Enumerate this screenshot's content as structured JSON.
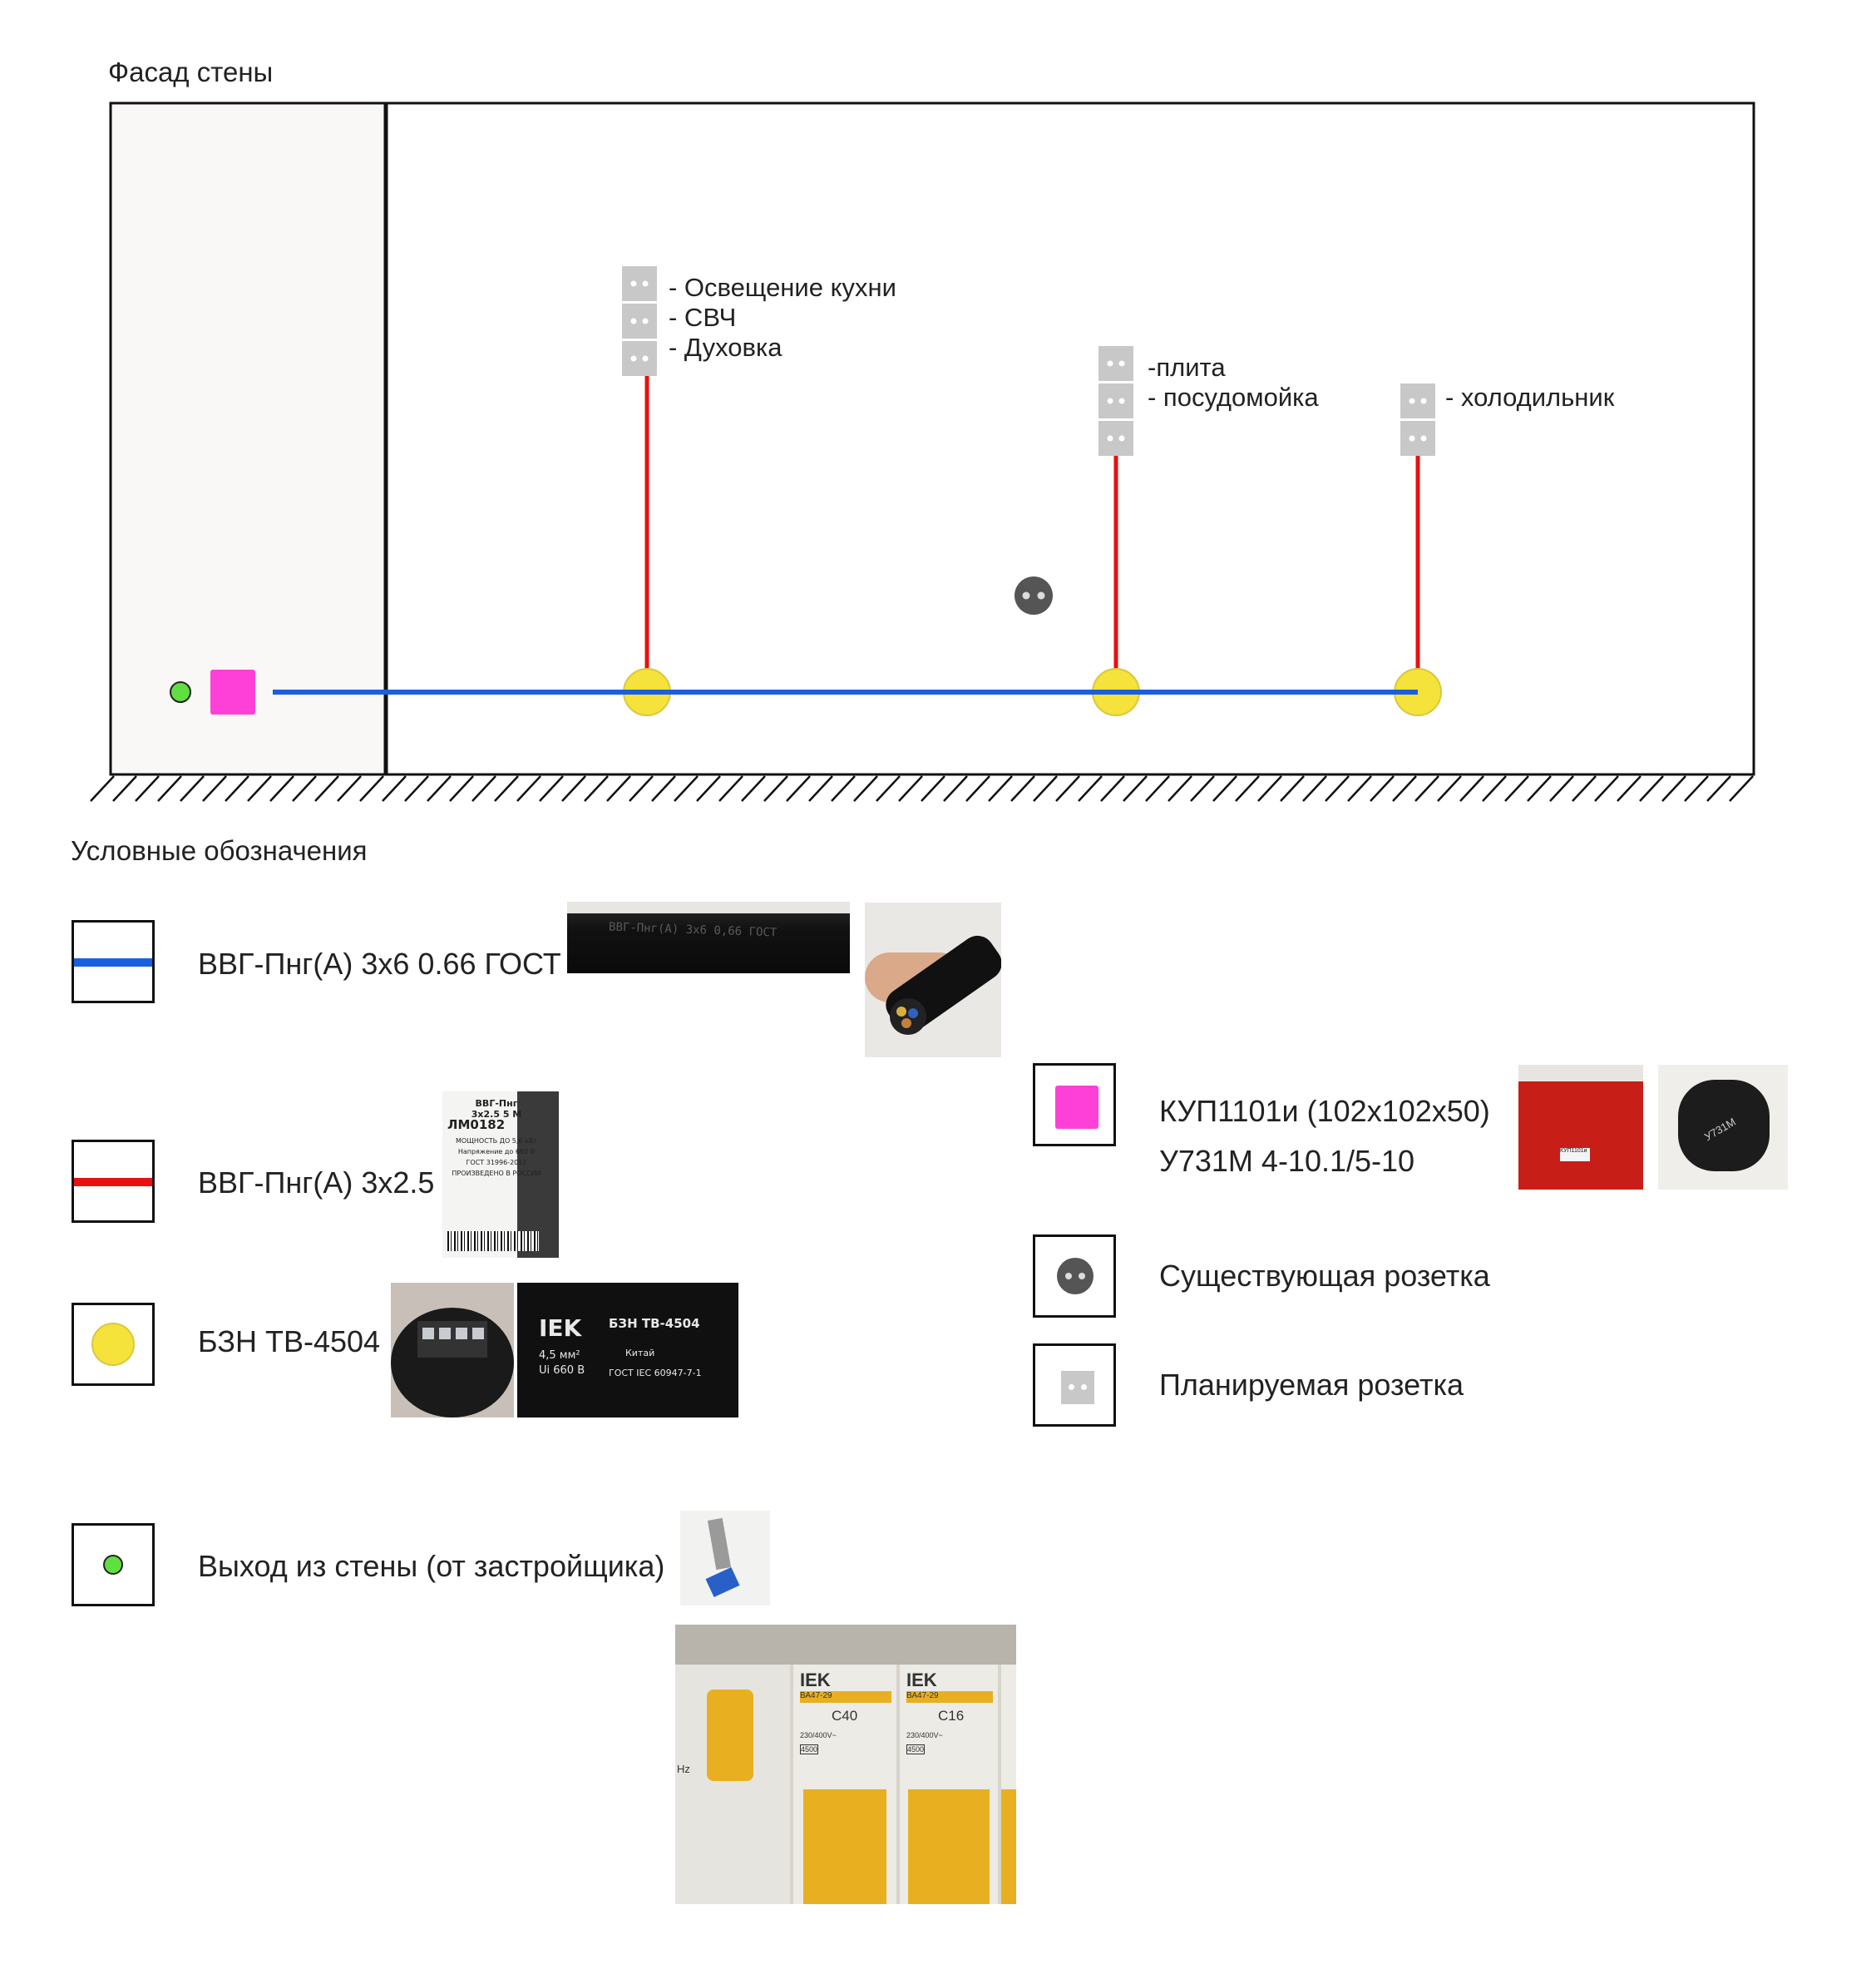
{
  "facade": {
    "title": "Фасад стены",
    "group1": [
      "- Освещение кухни",
      "- СВЧ",
      "- Духовка"
    ],
    "group2": [
      "-плита",
      "- посудомойка"
    ],
    "group3": [
      "- холодильник"
    ]
  },
  "legend": {
    "title": "Условные обозначения",
    "cable_6": "ВВГ-Пнг(А) 3х6 0.66 ГОСТ",
    "cable_25": "ВВГ-Пнг(А) 3х2.5",
    "junction": "БЗН ТВ-4504",
    "outlet_wall": "Выход из стены (от застройщика)",
    "box_line1": "КУП1101и (102х102х50)",
    "box_line2": "У731М 4-10.1/5-10",
    "existing_socket": "Существующая розетка",
    "planned_socket": "Планируемая розетка"
  },
  "photos": {
    "cable_print": "ВВГ-Пнг(А) 3х6 0,66 ГОСТ",
    "tag_line1": "ВВГ-Пнг",
    "tag_line2": "3х2.5 5 М",
    "tag_line3": "ЛМ0182",
    "tag_line4": "МОЩНОСТЬ ДО 5,6 кВт",
    "tag_line5": "Напряжение до 660 В",
    "tag_line6": "ГОСТ 31996-2012",
    "tag_line7": "ПРОИЗВЕДЕНО В РОССИИ",
    "iek_brand": "IEK",
    "iek_model": "БЗН ТВ-4504",
    "iek_spec1": "4,5 мм²",
    "iek_spec2": "Ui 660 В",
    "iek_origin": "Китай",
    "iek_gost": "ГОСТ IEC 60947-7-1",
    "breaker_model": "ВА47-29",
    "breaker_c40": "C40",
    "breaker_c16": "C16",
    "breaker_volt": "230/400V~",
    "breaker_cap": "4500",
    "breaker_hz": "Hz",
    "u731": "У731М",
    "red_label": "КУП1101и"
  },
  "colors": {
    "cable_main": "#1a5fe0",
    "cable_branch": "#e81010",
    "junction": "#f5e23a",
    "outlet": "#5fe040",
    "box": "#ff40d8",
    "socket_existing": "#555555",
    "socket_planned": "#c8c8c8"
  }
}
